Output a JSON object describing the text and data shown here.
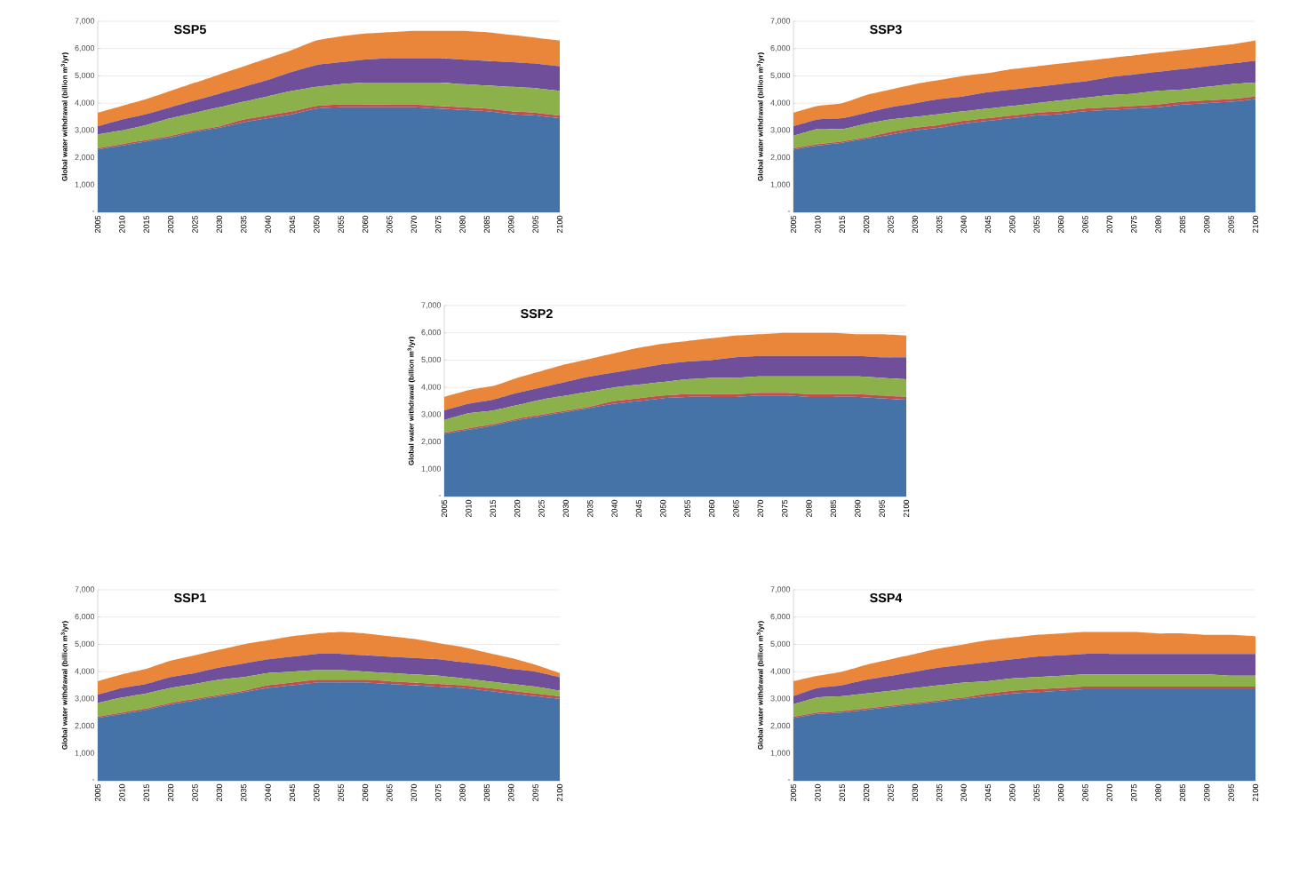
{
  "chart_data": [
    {
      "type": "area",
      "stacked": true,
      "title": "SSP5",
      "ylabel": "Global water withdrawal (billion m$^{3}$/yr)",
      "grid": "y",
      "categories": [
        "2005",
        "2010",
        "2015",
        "2020",
        "2025",
        "2030",
        "2035",
        "2040",
        "2045",
        "2050",
        "2055",
        "2060",
        "2065",
        "2070",
        "2075",
        "2080",
        "2085",
        "2090",
        "2095",
        "2100"
      ],
      "ylim": [
        0,
        7000
      ],
      "yticks": [
        {
          "value": 0,
          "label": "-"
        },
        {
          "value": 1000,
          "label": "1,000"
        },
        {
          "value": 2000,
          "label": "2,000"
        },
        {
          "value": 3000,
          "label": "3,000"
        },
        {
          "value": 4000,
          "label": "4,000"
        },
        {
          "value": 5000,
          "label": "5,000"
        },
        {
          "value": 6000,
          "label": "6,000"
        },
        {
          "value": 7000,
          "label": "7,000"
        }
      ],
      "series": [
        {
          "color": "#4572a7",
          "values": [
            2300,
            2450,
            2600,
            2750,
            2950,
            3100,
            3300,
            3450,
            3600,
            3800,
            3850,
            3850,
            3850,
            3850,
            3800,
            3750,
            3700,
            3600,
            3550,
            3450
          ]
        },
        {
          "color": "#c0504d",
          "values": [
            50,
            50,
            50,
            50,
            50,
            50,
            100,
            100,
            100,
            100,
            100,
            100,
            100,
            100,
            100,
            100,
            100,
            100,
            100,
            100
          ]
        },
        {
          "color": "#8cb04a",
          "values": [
            500,
            500,
            550,
            650,
            650,
            700,
            650,
            700,
            750,
            700,
            750,
            800,
            800,
            800,
            850,
            850,
            850,
            900,
            900,
            900
          ]
        },
        {
          "color": "#6f4f9a",
          "values": [
            300,
            400,
            400,
            400,
            450,
            500,
            550,
            600,
            700,
            800,
            800,
            850,
            900,
            900,
            900,
            900,
            900,
            900,
            900,
            900
          ]
        },
        {
          "color": "#e9863a",
          "values": [
            500,
            500,
            550,
            600,
            650,
            700,
            750,
            800,
            800,
            900,
            950,
            950,
            950,
            1000,
            1000,
            1050,
            1050,
            1000,
            950,
            950
          ]
        }
      ]
    },
    {
      "type": "area",
      "stacked": true,
      "title": "SSP3",
      "ylabel": "Global water withdrawal (billion m$^{3}$/yr)",
      "grid": "y",
      "categories": [
        "2005",
        "2010",
        "2015",
        "2020",
        "2025",
        "2030",
        "2035",
        "2040",
        "2045",
        "2050",
        "2055",
        "2060",
        "2065",
        "2070",
        "2075",
        "2080",
        "2085",
        "2090",
        "2095",
        "2100"
      ],
      "ylim": [
        0,
        7000
      ],
      "yticks": [
        {
          "value": 0,
          "label": "-"
        },
        {
          "value": 1000,
          "label": "1,000"
        },
        {
          "value": 2000,
          "label": "2,000"
        },
        {
          "value": 3000,
          "label": "3,000"
        },
        {
          "value": 4000,
          "label": "4,000"
        },
        {
          "value": 5000,
          "label": "5,000"
        },
        {
          "value": 6000,
          "label": "6,000"
        },
        {
          "value": 7000,
          "label": "7,000"
        }
      ],
      "series": [
        {
          "color": "#4572a7",
          "values": [
            2300,
            2450,
            2550,
            2700,
            2850,
            3000,
            3100,
            3250,
            3350,
            3450,
            3550,
            3600,
            3700,
            3750,
            3800,
            3850,
            3950,
            4000,
            4050,
            4150
          ]
        },
        {
          "color": "#c0504d",
          "values": [
            50,
            50,
            50,
            50,
            100,
            100,
            100,
            100,
            100,
            100,
            100,
            100,
            100,
            100,
            100,
            100,
            100,
            100,
            100,
            100
          ]
        },
        {
          "color": "#8cb04a",
          "values": [
            450,
            550,
            450,
            500,
            450,
            400,
            400,
            350,
            350,
            350,
            350,
            400,
            400,
            450,
            450,
            500,
            450,
            500,
            550,
            500
          ]
        },
        {
          "color": "#6f4f9a",
          "values": [
            350,
            350,
            400,
            400,
            450,
            500,
            550,
            550,
            600,
            600,
            600,
            600,
            600,
            650,
            700,
            700,
            750,
            750,
            750,
            800
          ]
        },
        {
          "color": "#e9863a",
          "values": [
            500,
            500,
            550,
            650,
            650,
            700,
            700,
            750,
            700,
            750,
            750,
            750,
            750,
            700,
            700,
            700,
            700,
            700,
            700,
            750
          ]
        }
      ]
    },
    {
      "type": "area",
      "stacked": true,
      "title": "SSP2",
      "ylabel": "Global water withdrawal (billion m$^{3}$/yr)",
      "grid": "y",
      "categories": [
        "2005",
        "2010",
        "2015",
        "2020",
        "2025",
        "2030",
        "2035",
        "2040",
        "2045",
        "2050",
        "2055",
        "2060",
        "2065",
        "2070",
        "2075",
        "2080",
        "2085",
        "2090",
        "2095",
        "2100"
      ],
      "ylim": [
        0,
        7000
      ],
      "yticks": [
        {
          "value": 0,
          "label": "-"
        },
        {
          "value": 1000,
          "label": "1,000"
        },
        {
          "value": 2000,
          "label": "2,000"
        },
        {
          "value": 3000,
          "label": "3,000"
        },
        {
          "value": 4000,
          "label": "4,000"
        },
        {
          "value": 5000,
          "label": "5,000"
        },
        {
          "value": 6000,
          "label": "6,000"
        },
        {
          "value": 7000,
          "label": "7,000"
        }
      ],
      "series": [
        {
          "color": "#4572a7",
          "values": [
            2300,
            2450,
            2600,
            2800,
            2950,
            3100,
            3250,
            3400,
            3500,
            3600,
            3650,
            3650,
            3650,
            3700,
            3700,
            3650,
            3650,
            3650,
            3600,
            3550
          ]
        },
        {
          "color": "#c0504d",
          "values": [
            50,
            50,
            50,
            50,
            50,
            50,
            50,
            100,
            100,
            100,
            100,
            100,
            100,
            100,
            100,
            100,
            100,
            100,
            100,
            100
          ]
        },
        {
          "color": "#8cb04a",
          "values": [
            450,
            550,
            500,
            500,
            550,
            550,
            550,
            500,
            500,
            500,
            550,
            600,
            600,
            600,
            600,
            650,
            650,
            650,
            650,
            650
          ]
        },
        {
          "color": "#6f4f9a",
          "values": [
            350,
            350,
            400,
            450,
            450,
            500,
            550,
            550,
            600,
            650,
            650,
            650,
            750,
            750,
            750,
            750,
            750,
            750,
            750,
            800
          ]
        },
        {
          "color": "#e9863a",
          "values": [
            500,
            500,
            500,
            550,
            600,
            650,
            650,
            700,
            750,
            750,
            750,
            800,
            800,
            800,
            850,
            850,
            850,
            800,
            850,
            800
          ]
        }
      ]
    },
    {
      "type": "area",
      "stacked": true,
      "title": "SSP1",
      "ylabel": "Global water withdrawal (billion m$^{3}$/yr)",
      "grid": "y",
      "categories": [
        "2005",
        "2010",
        "2015",
        "2020",
        "2025",
        "2030",
        "2035",
        "2040",
        "2045",
        "2050",
        "2055",
        "2060",
        "2065",
        "2070",
        "2075",
        "2080",
        "2085",
        "2090",
        "2095",
        "2100"
      ],
      "ylim": [
        0,
        7000
      ],
      "yticks": [
        {
          "value": 0,
          "label": "-"
        },
        {
          "value": 1000,
          "label": "1,000"
        },
        {
          "value": 2000,
          "label": "2,000"
        },
        {
          "value": 3000,
          "label": "3,000"
        },
        {
          "value": 4000,
          "label": "4,000"
        },
        {
          "value": 5000,
          "label": "5,000"
        },
        {
          "value": 6000,
          "label": "6,000"
        },
        {
          "value": 7000,
          "label": "7,000"
        }
      ],
      "series": [
        {
          "color": "#4572a7",
          "values": [
            2300,
            2450,
            2600,
            2800,
            2950,
            3100,
            3250,
            3400,
            3500,
            3600,
            3600,
            3600,
            3550,
            3500,
            3450,
            3400,
            3300,
            3200,
            3100,
            3000
          ]
        },
        {
          "color": "#c0504d",
          "values": [
            50,
            50,
            50,
            50,
            50,
            50,
            50,
            100,
            100,
            100,
            100,
            100,
            100,
            100,
            100,
            100,
            100,
            100,
            100,
            100
          ]
        },
        {
          "color": "#8cb04a",
          "values": [
            500,
            550,
            550,
            550,
            550,
            550,
            500,
            450,
            400,
            350,
            350,
            300,
            300,
            300,
            300,
            250,
            250,
            250,
            250,
            200
          ]
        },
        {
          "color": "#6f4f9a",
          "values": [
            300,
            350,
            350,
            400,
            400,
            450,
            500,
            500,
            550,
            600,
            600,
            600,
            600,
            600,
            600,
            600,
            600,
            550,
            550,
            500
          ]
        },
        {
          "color": "#e9863a",
          "values": [
            500,
            500,
            550,
            600,
            650,
            650,
            700,
            700,
            750,
            750,
            800,
            800,
            750,
            700,
            600,
            550,
            450,
            400,
            250,
            150
          ]
        }
      ]
    },
    {
      "type": "area",
      "stacked": true,
      "title": "SSP4",
      "ylabel": "Global water withdrawal (billion m$^{3}$/yr)",
      "grid": "y",
      "categories": [
        "2005",
        "2010",
        "2015",
        "2020",
        "2025",
        "2030",
        "2035",
        "2040",
        "2045",
        "2050",
        "2055",
        "2060",
        "2065",
        "2070",
        "2075",
        "2080",
        "2085",
        "2090",
        "2095",
        "2100"
      ],
      "ylim": [
        0,
        7000
      ],
      "yticks": [
        {
          "value": 0,
          "label": "-"
        },
        {
          "value": 1000,
          "label": "1,000"
        },
        {
          "value": 2000,
          "label": "2,000"
        },
        {
          "value": 3000,
          "label": "3,000"
        },
        {
          "value": 4000,
          "label": "4,000"
        },
        {
          "value": 5000,
          "label": "5,000"
        },
        {
          "value": 6000,
          "label": "6,000"
        },
        {
          "value": 7000,
          "label": "7,000"
        }
      ],
      "series": [
        {
          "color": "#4572a7",
          "values": [
            2300,
            2450,
            2500,
            2600,
            2700,
            2800,
            2900,
            3000,
            3100,
            3200,
            3250,
            3300,
            3350,
            3350,
            3350,
            3350,
            3350,
            3350,
            3350,
            3350
          ]
        },
        {
          "color": "#c0504d",
          "values": [
            50,
            50,
            50,
            50,
            50,
            50,
            50,
            50,
            100,
            100,
            100,
            100,
            100,
            100,
            100,
            100,
            100,
            100,
            100,
            100
          ]
        },
        {
          "color": "#8cb04a",
          "values": [
            450,
            550,
            550,
            550,
            550,
            550,
            550,
            550,
            450,
            450,
            450,
            450,
            450,
            450,
            450,
            450,
            450,
            450,
            400,
            400
          ]
        },
        {
          "color": "#6f4f9a",
          "values": [
            300,
            350,
            400,
            500,
            550,
            600,
            650,
            650,
            700,
            700,
            750,
            750,
            750,
            750,
            750,
            750,
            750,
            750,
            800,
            800
          ]
        },
        {
          "color": "#e9863a",
          "values": [
            550,
            450,
            500,
            550,
            600,
            650,
            700,
            750,
            800,
            800,
            800,
            800,
            800,
            800,
            800,
            750,
            750,
            700,
            700,
            650
          ]
        }
      ]
    }
  ]
}
